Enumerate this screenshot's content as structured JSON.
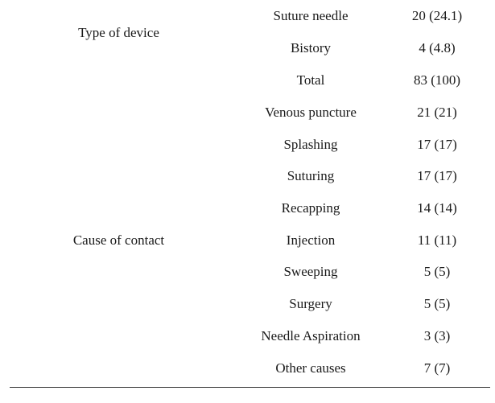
{
  "groups": [
    {
      "label": "Type of device",
      "rows": [
        {
          "item": "Suture needle",
          "value": "20 (24.1)"
        },
        {
          "item": "Bistory",
          "value": "4 (4.8)"
        },
        {
          "item": "Total",
          "value": "83 (100)"
        }
      ]
    },
    {
      "label": "Cause of contact",
      "rows": [
        {
          "item": "Venous puncture",
          "value": "21 (21)"
        },
        {
          "item": "Splashing",
          "value": "17 (17)"
        },
        {
          "item": "Suturing",
          "value": "17 (17)"
        },
        {
          "item": "Recapping",
          "value": "14 (14)"
        },
        {
          "item": "Injection",
          "value": "11 (11)"
        },
        {
          "item": "Sweeping",
          "value": "5 (5)"
        },
        {
          "item": "Surgery",
          "value": "5 (5)"
        },
        {
          "item": "Needle Aspiration",
          "value": "3 (3)"
        },
        {
          "item": "Other causes",
          "value": "7 (7)"
        }
      ]
    }
  ]
}
